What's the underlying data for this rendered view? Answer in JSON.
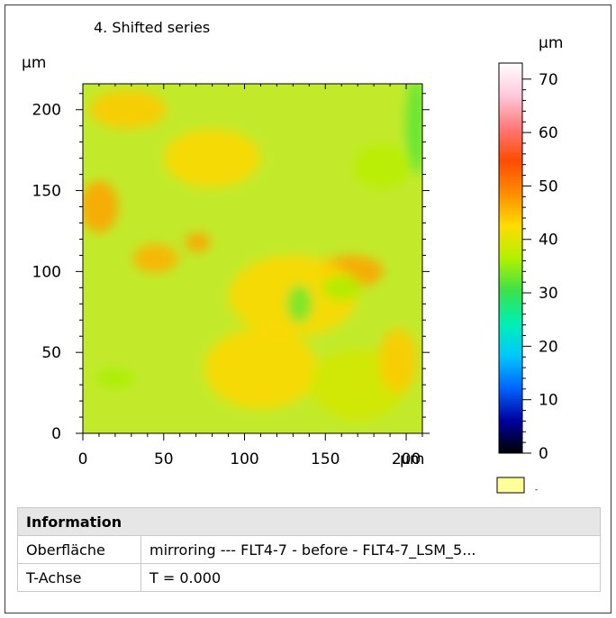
{
  "plot": {
    "title": "4. Shifted series",
    "x_unit": "µm",
    "y_unit": "µm"
  },
  "colorbar": {
    "unit": "µm",
    "tick_labels": [
      "70",
      "60",
      "50",
      "40",
      "30",
      "20",
      "10",
      "0"
    ],
    "range": [
      0,
      73
    ],
    "missing_value_swatch_color": "#ffff99",
    "missing_value_label": "-",
    "gradient_colors": [
      "#000000",
      "#0000a0",
      "#0064ff",
      "#00c8ff",
      "#00f0b4",
      "#3ce14b",
      "#b4f000",
      "#ffdc00",
      "#ff8c00",
      "#ff4b00",
      "#ff7878",
      "#ffc8dc",
      "#ffffff"
    ]
  },
  "chart_data": {
    "type": "heatmap",
    "title": "4. Shifted series",
    "xlabel": "µm",
    "ylabel": "µm",
    "xlim": [
      0,
      210
    ],
    "ylim": [
      0,
      216
    ],
    "x_ticks": [
      0,
      50,
      100,
      150,
      200
    ],
    "y_ticks": [
      0,
      50,
      100,
      150,
      200
    ],
    "value_unit": "µm",
    "value_range": [
      0,
      73
    ],
    "base_color": "#c2ea2b",
    "features": [
      {
        "x": 166,
        "y": 100,
        "rx": 20,
        "ry": 10,
        "value": 47
      },
      {
        "x": 130,
        "y": 85,
        "rx": 40,
        "ry": 25,
        "value": 43
      },
      {
        "x": 45,
        "y": 108,
        "rx": 14,
        "ry": 9,
        "value": 46
      },
      {
        "x": 71,
        "y": 118,
        "rx": 8,
        "ry": 6,
        "value": 47
      },
      {
        "x": 10,
        "y": 140,
        "rx": 12,
        "ry": 16,
        "value": 47
      },
      {
        "x": 110,
        "y": 40,
        "rx": 35,
        "ry": 25,
        "value": 43
      },
      {
        "x": 28,
        "y": 200,
        "rx": 24,
        "ry": 12,
        "value": 44
      },
      {
        "x": 80,
        "y": 170,
        "rx": 30,
        "ry": 18,
        "value": 43
      },
      {
        "x": 134,
        "y": 80,
        "rx": 8,
        "ry": 12,
        "value": 33
      },
      {
        "x": 160,
        "y": 90,
        "rx": 12,
        "ry": 8,
        "value": 36
      },
      {
        "x": 206,
        "y": 190,
        "rx": 6,
        "ry": 30,
        "value": 32
      },
      {
        "x": 20,
        "y": 34,
        "rx": 12,
        "ry": 6,
        "value": 36
      },
      {
        "x": 185,
        "y": 165,
        "rx": 18,
        "ry": 14,
        "value": 37
      },
      {
        "x": 170,
        "y": 30,
        "rx": 30,
        "ry": 22,
        "value": 39
      },
      {
        "x": 195,
        "y": 45,
        "rx": 12,
        "ry": 20,
        "value": 44
      }
    ]
  },
  "info_panel": {
    "header": "Information",
    "rows": [
      {
        "key": "Oberfläche",
        "value": "mirroring --- FLT4-7 - before - FLT4-7_LSM_5..."
      },
      {
        "key": "T-Achse",
        "value": "T = 0.000"
      }
    ]
  }
}
